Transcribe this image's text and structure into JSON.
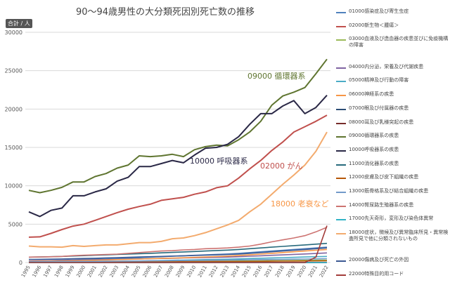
{
  "title": "90～94歳男性の大分類死因別死亡数の推移",
  "unit_label": "合計 / 人",
  "chart_data": {
    "type": "line",
    "title": "90～94歳男性の大分類死因別死亡数の推移",
    "ylabel": "合計 / 人",
    "ylim": [
      0,
      30000
    ],
    "yticks": [
      0,
      5000,
      10000,
      15000,
      20000,
      25000,
      30000
    ],
    "grid": true,
    "legend_position": "right",
    "x": [
      "1995",
      "1996",
      "1997",
      "1998",
      "1999",
      "2000",
      "2001",
      "2002",
      "2003",
      "2004",
      "2005",
      "2006",
      "2007",
      "2008",
      "2009",
      "2010",
      "2011",
      "2012",
      "2013",
      "2014",
      "2015",
      "2016",
      "2017",
      "2018",
      "2019",
      "2020",
      "2021",
      "2022"
    ],
    "series": [
      {
        "name": "01000感染症及び寄生虫症",
        "color": "#4f81bd",
        "values": [
          200,
          230,
          260,
          300,
          360,
          400,
          430,
          470,
          520,
          560,
          620,
          700,
          760,
          820,
          880,
          940,
          1000,
          1060,
          1120,
          1200,
          1300,
          1400,
          1500,
          1600,
          1700,
          1800,
          1900,
          2000
        ]
      },
      {
        "name": "02000新生物＜腫瘍＞",
        "color": "#c0504d",
        "values": [
          3300,
          3350,
          3800,
          4300,
          4750,
          5000,
          5500,
          6000,
          6500,
          6950,
          7300,
          7600,
          8100,
          8300,
          8500,
          8900,
          9200,
          9750,
          10000,
          11000,
          12200,
          13300,
          14600,
          15700,
          17000,
          17700,
          18400,
          19200
        ]
      },
      {
        "name": "03000血液及び造血器の疾患並びに免疫機構の障害",
        "color": "#9bbb59",
        "values": [
          60,
          65,
          70,
          75,
          80,
          85,
          90,
          95,
          100,
          110,
          115,
          120,
          130,
          140,
          150,
          160,
          170,
          180,
          190,
          200,
          215,
          230,
          245,
          260,
          275,
          290,
          305,
          320
        ]
      },
      {
        "name": "04000内分泌，栄養及び代謝疾患",
        "color": "#8064a2",
        "values": [
          200,
          220,
          240,
          270,
          300,
          330,
          350,
          380,
          410,
          440,
          470,
          500,
          530,
          560,
          590,
          620,
          650,
          680,
          710,
          760,
          820,
          880,
          940,
          1000,
          1060,
          1120,
          1180,
          1250
        ]
      },
      {
        "name": "05000精神及び行動の障害",
        "color": "#4bacc6",
        "values": [
          60,
          70,
          80,
          90,
          100,
          110,
          120,
          140,
          160,
          180,
          200,
          230,
          260,
          290,
          320,
          350,
          380,
          410,
          440,
          480,
          520,
          560,
          600,
          640,
          680,
          720,
          760,
          800
        ]
      },
      {
        "name": "06000神経系の疾患",
        "color": "#f79646",
        "values": [
          150,
          170,
          190,
          210,
          240,
          270,
          300,
          340,
          380,
          420,
          460,
          500,
          540,
          580,
          620,
          670,
          720,
          780,
          840,
          920,
          1000,
          1100,
          1200,
          1300,
          1400,
          1500,
          1600,
          1700
        ]
      },
      {
        "name": "07000眼及び付属器の疾患",
        "color": "#2c4d75",
        "values": [
          0,
          0,
          0,
          0,
          0,
          0,
          0,
          0,
          0,
          0,
          0,
          0,
          0,
          0,
          0,
          0,
          0,
          0,
          0,
          0,
          0,
          0,
          0,
          0,
          0,
          0,
          0,
          0
        ]
      },
      {
        "name": "08000耳及び乳様突起の疾患",
        "color": "#772c2a",
        "values": [
          0,
          0,
          0,
          0,
          0,
          0,
          0,
          0,
          0,
          0,
          0,
          0,
          0,
          0,
          0,
          0,
          0,
          0,
          0,
          0,
          0,
          0,
          0,
          0,
          0,
          0,
          0,
          0
        ]
      },
      {
        "name": "09000循環器系の疾患",
        "color": "#5f7530",
        "values": [
          9400,
          9100,
          9400,
          9800,
          10500,
          10500,
          11200,
          11600,
          12300,
          12700,
          13900,
          13800,
          13900,
          14100,
          13800,
          14700,
          15100,
          15300,
          15200,
          16000,
          17000,
          18400,
          20500,
          21700,
          22200,
          22800,
          24600,
          26500
        ]
      },
      {
        "name": "10000呼吸器系の疾患",
        "color": "#2a2846",
        "values": [
          6600,
          6000,
          6800,
          7100,
          8700,
          8700,
          9200,
          9600,
          10600,
          11100,
          12500,
          12500,
          12900,
          13300,
          13000,
          14000,
          14900,
          15000,
          15400,
          16400,
          18000,
          19400,
          19400,
          20400,
          21100,
          19400,
          20200,
          21800
        ]
      },
      {
        "name": "11000消化器系の疾患",
        "color": "#276a7c",
        "values": [
          700,
          730,
          760,
          800,
          850,
          900,
          950,
          1000,
          1050,
          1100,
          1150,
          1200,
          1260,
          1320,
          1380,
          1440,
          1500,
          1560,
          1620,
          1700,
          1800,
          1900,
          2000,
          2100,
          2200,
          2300,
          2400,
          2500
        ]
      },
      {
        "name": "12000皮膚及び皮下組織の疾患",
        "color": "#b65708",
        "values": [
          40,
          45,
          50,
          55,
          60,
          65,
          70,
          75,
          80,
          85,
          90,
          95,
          100,
          105,
          110,
          115,
          120,
          125,
          130,
          140,
          150,
          160,
          170,
          180,
          190,
          200,
          210,
          220
        ]
      },
      {
        "name": "13000筋骨格系及び結合組織の疾患",
        "color": "#729aca",
        "values": [
          100,
          110,
          120,
          130,
          140,
          150,
          160,
          170,
          180,
          190,
          200,
          215,
          230,
          245,
          260,
          275,
          290,
          305,
          320,
          340,
          360,
          380,
          400,
          420,
          440,
          460,
          480,
          500
        ]
      },
      {
        "name": "14000腎尿路生殖器系の疾患",
        "color": "#cd7371",
        "values": [
          700,
          720,
          750,
          800,
          900,
          950,
          1000,
          1050,
          1100,
          1200,
          1300,
          1400,
          1500,
          1550,
          1650,
          1700,
          1800,
          1850,
          1900,
          2000,
          2150,
          2400,
          2700,
          2950,
          3200,
          3500,
          4000,
          4600
        ]
      },
      {
        "name": "17000先天奇形，変形及び染色体異常",
        "color": "#31b3c6",
        "values": [
          5,
          5,
          5,
          5,
          5,
          5,
          5,
          5,
          5,
          5,
          5,
          5,
          5,
          5,
          5,
          5,
          5,
          5,
          5,
          5,
          5,
          5,
          5,
          5,
          5,
          5,
          5,
          5
        ]
      },
      {
        "name": "18000症状，徴候及び異常臨床所見・異常検査所見で他に分類されないもの",
        "color": "#f3ab6e",
        "values": [
          2150,
          2050,
          2050,
          2000,
          2200,
          2100,
          2200,
          2300,
          2300,
          2450,
          2600,
          2600,
          2750,
          3100,
          3200,
          3500,
          3900,
          4400,
          4900,
          5500,
          6600,
          7600,
          8900,
          10200,
          11400,
          12700,
          14500,
          17000
        ]
      },
      {
        "name": "20000傷病及び死亡の外因",
        "color": "#3b5993",
        "values": [
          400,
          420,
          440,
          470,
          500,
          530,
          560,
          600,
          640,
          680,
          720,
          760,
          800,
          840,
          880,
          920,
          960,
          1000,
          1050,
          1100,
          1200,
          1300,
          1400,
          1500,
          1600,
          1700,
          1800,
          1900
        ]
      },
      {
        "name": "22000特殊目的用コード",
        "color": "#a33c3a",
        "values": [
          0,
          0,
          0,
          0,
          0,
          0,
          0,
          0,
          0,
          0,
          0,
          0,
          0,
          0,
          0,
          0,
          0,
          0,
          0,
          0,
          0,
          0,
          0,
          0,
          0,
          0,
          700,
          4800
        ]
      }
    ],
    "annotations": [
      {
        "text": "09000 循環器系",
        "series": "09000循環器系の疾患",
        "color": "#5f7530"
      },
      {
        "text": "10000 呼吸器系",
        "series": "10000呼吸器系の疾患",
        "color": "#2a2846"
      },
      {
        "text": "02000 がん",
        "series": "02000新生物＜腫瘍＞",
        "color": "#c0504d"
      },
      {
        "text": "18000 老衰など",
        "series": "18000症状，徴候及び異常臨床所見・異常検査所見で他に分類されないもの",
        "color": "#f79646"
      }
    ]
  }
}
